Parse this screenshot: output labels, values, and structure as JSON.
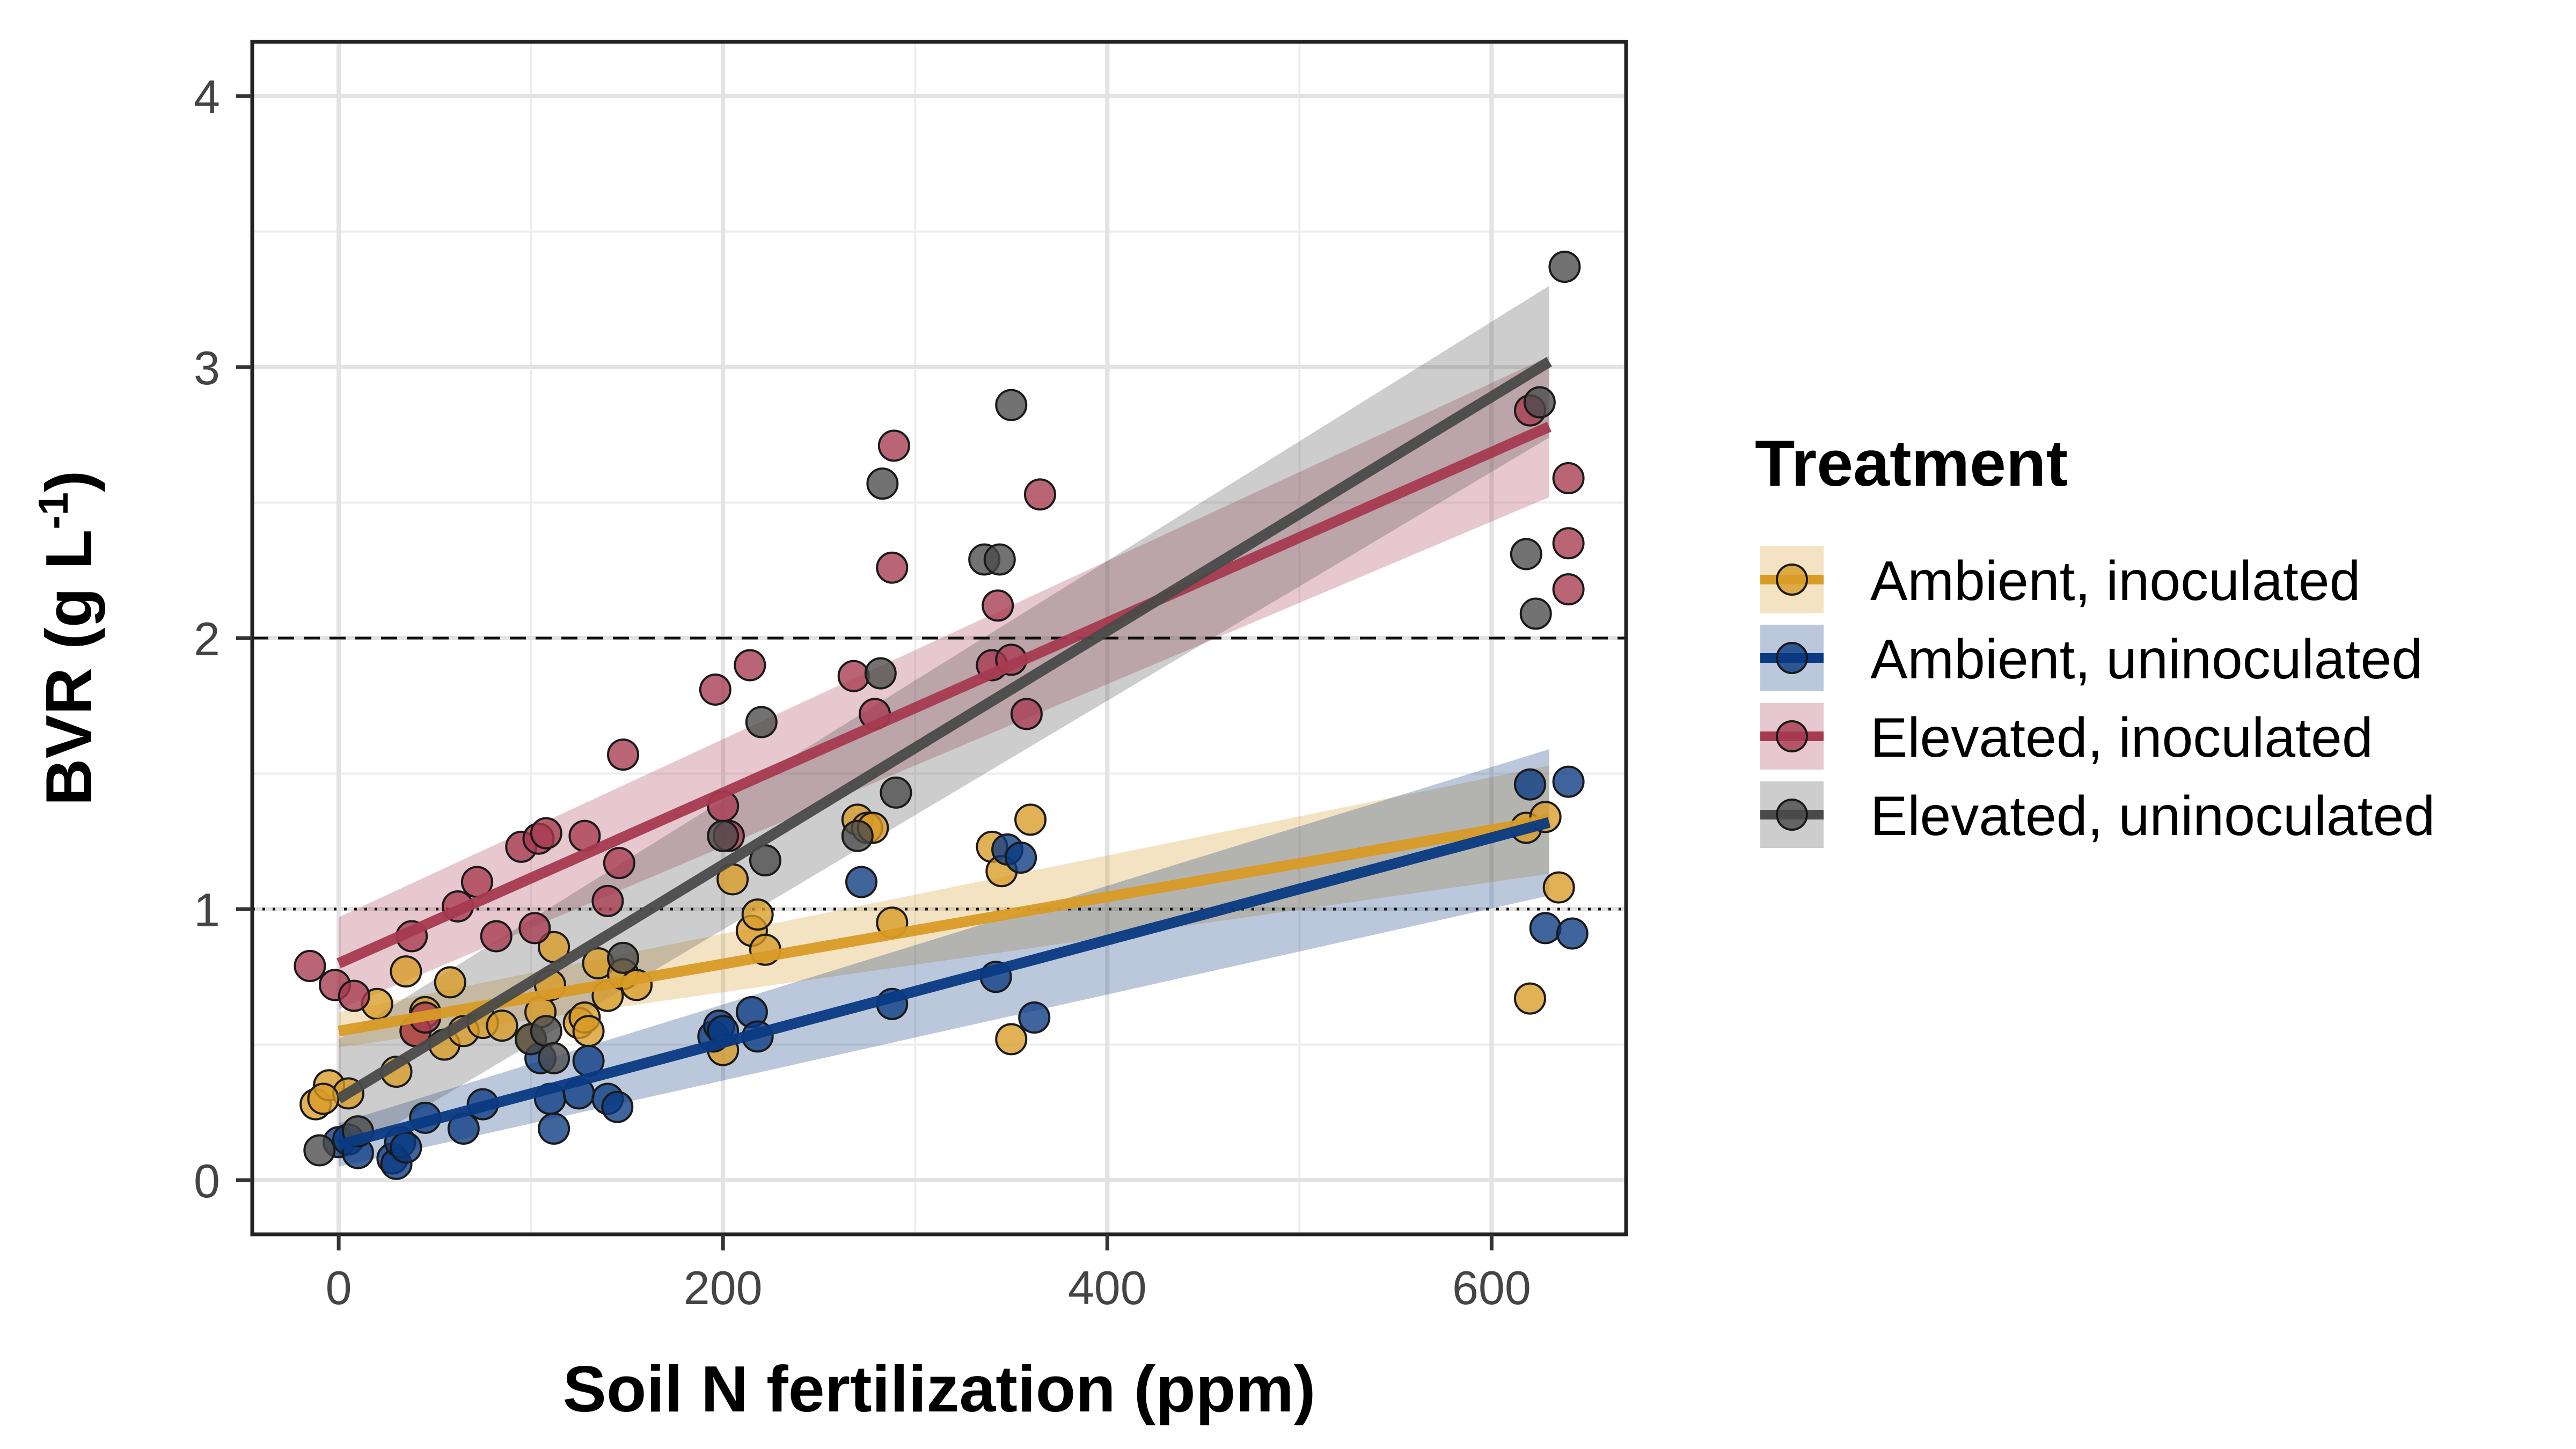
{
  "chart_data": {
    "type": "scatter",
    "title": "",
    "xlabel": "Soil N fertilization (ppm)",
    "ylabel_main": "BVR (g L",
    "ylabel_sup": "-1",
    "ylabel_close": ")",
    "xlim": [
      -45,
      670
    ],
    "ylim": [
      -0.2,
      4.2
    ],
    "x_ticks": [
      0,
      200,
      400,
      600
    ],
    "y_ticks": [
      0,
      1,
      2,
      3,
      4
    ],
    "x_tick_labels": [
      "0",
      "200",
      "400",
      "600"
    ],
    "y_tick_labels": [
      "0",
      "1",
      "2",
      "3",
      "4"
    ],
    "grid": true,
    "reference_lines": [
      {
        "y": 2,
        "style": "dashed"
      },
      {
        "y": 1,
        "style": "dotted"
      }
    ],
    "legend": {
      "title": "Treatment",
      "position": "right"
    },
    "series": [
      {
        "name": "Ambient, inoculated",
        "color": "#D89B26",
        "fit": {
          "x": [
            0,
            630
          ],
          "y": [
            0.55,
            1.33
          ],
          "ci_lower": [
            0.49,
            1.13
          ],
          "ci_upper": [
            0.62,
            1.53
          ]
        },
        "points": [
          [
            -12,
            0.28
          ],
          [
            -5,
            0.35
          ],
          [
            5,
            0.32
          ],
          [
            -8,
            0.3
          ],
          [
            20,
            0.65
          ],
          [
            30,
            0.4
          ],
          [
            35,
            0.77
          ],
          [
            45,
            0.62
          ],
          [
            40,
            0.55
          ],
          [
            55,
            0.5
          ],
          [
            58,
            0.73
          ],
          [
            65,
            0.55
          ],
          [
            75,
            0.58
          ],
          [
            85,
            0.57
          ],
          [
            100,
            0.52
          ],
          [
            105,
            0.62
          ],
          [
            110,
            0.72
          ],
          [
            112,
            0.86
          ],
          [
            125,
            0.58
          ],
          [
            128,
            0.6
          ],
          [
            130,
            0.55
          ],
          [
            135,
            0.8
          ],
          [
            140,
            0.68
          ],
          [
            148,
            0.76
          ],
          [
            155,
            0.72
          ],
          [
            200,
            0.48
          ],
          [
            205,
            1.11
          ],
          [
            215,
            0.92
          ],
          [
            218,
            0.98
          ],
          [
            222,
            0.85
          ],
          [
            270,
            1.33
          ],
          [
            275,
            1.3
          ],
          [
            278,
            1.3
          ],
          [
            288,
            0.95
          ],
          [
            340,
            1.23
          ],
          [
            345,
            1.14
          ],
          [
            350,
            0.52
          ],
          [
            360,
            1.33
          ],
          [
            618,
            1.3
          ],
          [
            620,
            0.67
          ],
          [
            628,
            1.34
          ],
          [
            635,
            1.08
          ]
        ]
      },
      {
        "name": "Ambient, uninoculated",
        "color": "#0A3A82",
        "fit": {
          "x": [
            0,
            630
          ],
          "y": [
            0.13,
            1.32
          ],
          "ci_lower": [
            0.05,
            1.05
          ],
          "ci_upper": [
            0.21,
            1.59
          ]
        },
        "points": [
          [
            0,
            0.14
          ],
          [
            5,
            0.15
          ],
          [
            10,
            0.1
          ],
          [
            28,
            0.08
          ],
          [
            30,
            0.06
          ],
          [
            32,
            0.14
          ],
          [
            35,
            0.12
          ],
          [
            45,
            0.23
          ],
          [
            65,
            0.19
          ],
          [
            75,
            0.28
          ],
          [
            105,
            0.45
          ],
          [
            110,
            0.3
          ],
          [
            112,
            0.19
          ],
          [
            125,
            0.32
          ],
          [
            130,
            0.44
          ],
          [
            140,
            0.3
          ],
          [
            145,
            0.27
          ],
          [
            195,
            0.53
          ],
          [
            198,
            0.57
          ],
          [
            200,
            0.55
          ],
          [
            215,
            0.62
          ],
          [
            218,
            0.53
          ],
          [
            272,
            1.1
          ],
          [
            288,
            0.65
          ],
          [
            342,
            0.75
          ],
          [
            348,
            1.22
          ],
          [
            355,
            1.19
          ],
          [
            362,
            0.6
          ],
          [
            620,
            1.46
          ],
          [
            628,
            0.93
          ],
          [
            640,
            1.47
          ],
          [
            642,
            0.91
          ]
        ]
      },
      {
        "name": "Elevated, inoculated",
        "color": "#A63A50",
        "fit": {
          "x": [
            0,
            630
          ],
          "y": [
            0.8,
            2.78
          ],
          "ci_lower": [
            0.63,
            2.52
          ],
          "ci_upper": [
            0.97,
            3.04
          ]
        },
        "points": [
          [
            -15,
            0.79
          ],
          [
            -2,
            0.72
          ],
          [
            8,
            0.68
          ],
          [
            38,
            0.9
          ],
          [
            40,
            0.55
          ],
          [
            45,
            0.6
          ],
          [
            62,
            1.01
          ],
          [
            72,
            1.1
          ],
          [
            82,
            0.9
          ],
          [
            95,
            1.23
          ],
          [
            102,
            0.93
          ],
          [
            104,
            1.26
          ],
          [
            108,
            1.28
          ],
          [
            128,
            1.27
          ],
          [
            140,
            1.03
          ],
          [
            146,
            1.17
          ],
          [
            148,
            1.57
          ],
          [
            196,
            1.81
          ],
          [
            200,
            1.38
          ],
          [
            203,
            1.27
          ],
          [
            214,
            1.9
          ],
          [
            268,
            1.86
          ],
          [
            279,
            1.72
          ],
          [
            288,
            2.26
          ],
          [
            289,
            2.71
          ],
          [
            340,
            1.9
          ],
          [
            343,
            2.12
          ],
          [
            350,
            1.92
          ],
          [
            358,
            1.72
          ],
          [
            365,
            2.53
          ],
          [
            620,
            2.84
          ],
          [
            640,
            2.59
          ],
          [
            640,
            2.35
          ],
          [
            640,
            2.18
          ]
        ]
      },
      {
        "name": "Elevated, uninoculated",
        "color": "#4A4A4A",
        "fit": {
          "x": [
            0,
            630
          ],
          "y": [
            0.3,
            3.02
          ],
          "ci_lower": [
            0.08,
            2.74
          ],
          "ci_upper": [
            0.52,
            3.3
          ]
        },
        "points": [
          [
            -10,
            0.11
          ],
          [
            10,
            0.18
          ],
          [
            100,
            0.52
          ],
          [
            108,
            0.55
          ],
          [
            112,
            0.45
          ],
          [
            148,
            0.82
          ],
          [
            200,
            1.27
          ],
          [
            222,
            1.18
          ],
          [
            220,
            1.69
          ],
          [
            270,
            1.27
          ],
          [
            282,
            1.87
          ],
          [
            283,
            2.57
          ],
          [
            290,
            1.43
          ],
          [
            336,
            2.29
          ],
          [
            344,
            2.29
          ],
          [
            350,
            2.86
          ],
          [
            618,
            2.31
          ],
          [
            623,
            2.09
          ],
          [
            625,
            2.87
          ],
          [
            638,
            3.37
          ]
        ]
      }
    ]
  }
}
